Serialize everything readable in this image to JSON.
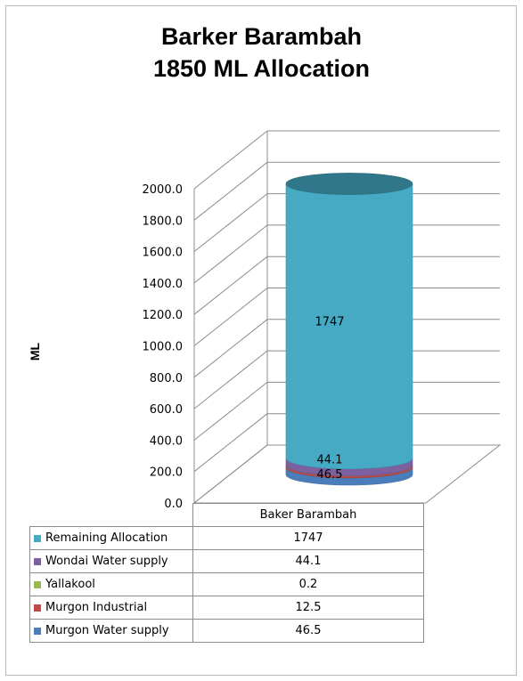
{
  "chart_data": {
    "type": "bar",
    "stacked": true,
    "three_d": true,
    "shape": "cylinder",
    "title": "Barker Barambah",
    "subtitle": "1850 ML Allocation",
    "ylabel": "ML",
    "xlabel": "",
    "ylim": [
      0,
      2000
    ],
    "yticks": [
      "0.0",
      "200.0",
      "400.0",
      "600.0",
      "800.0",
      "1000.0",
      "1200.0",
      "1400.0",
      "1600.0",
      "1800.0",
      "2000.0"
    ],
    "categories": [
      "Baker Barambah"
    ],
    "grid": true,
    "legend_position": "data-table",
    "series": [
      {
        "name": "Murgon Water supply",
        "values": [
          46.5
        ],
        "label": "46.5",
        "color": "#4a7ebb"
      },
      {
        "name": "Murgon Industrial",
        "values": [
          12.5
        ],
        "label": "12.5",
        "color": "#be4b48"
      },
      {
        "name": "Yallakool",
        "values": [
          0.2
        ],
        "label": "0.2",
        "color": "#98b954"
      },
      {
        "name": "Wondai Water supply",
        "values": [
          44.1
        ],
        "label": "44.1",
        "color": "#7d60a0"
      },
      {
        "name": "Remaining Allocation",
        "values": [
          1747
        ],
        "label": "1747",
        "color": "#46aac5"
      }
    ],
    "data_labels": [
      "46.5",
      "44.1",
      "1747"
    ],
    "table": {
      "header": "Baker Barambah",
      "rows": [
        {
          "name": "Remaining Allocation",
          "value": "1747",
          "color": "#46aac5"
        },
        {
          "name": "Wondai Water supply",
          "value": "44.1",
          "color": "#7d60a0"
        },
        {
          "name": "Yallakool",
          "value": "0.2",
          "color": "#98b954"
        },
        {
          "name": "Murgon Industrial",
          "value": "12.5",
          "color": "#be4b48"
        },
        {
          "name": "Murgon Water supply",
          "value": "46.5",
          "color": "#4a7ebb"
        }
      ]
    }
  }
}
